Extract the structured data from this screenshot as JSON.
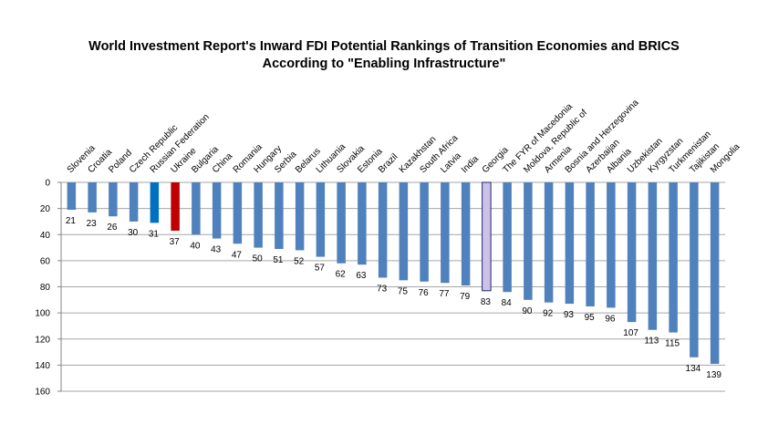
{
  "chart_data": {
    "type": "bar",
    "title_line1": "World Investment Report's Inward FDI Potential Rankings of Transition Economies and BRICS",
    "title_line2": "According to \"Enabling Infrastructure\"",
    "xlabel": "",
    "ylabel": "",
    "ylim": [
      0,
      160
    ],
    "y_inverted": true,
    "y_ticks": [
      0,
      20,
      40,
      60,
      80,
      100,
      120,
      140,
      160
    ],
    "grid": "horizontal",
    "legend": "none",
    "categories": [
      "Slovenia",
      "Croatia",
      "Poland",
      "Czech Republic",
      "Russian Federation",
      "Ukraine",
      "Bulgaria",
      "China",
      "Romania",
      "Hungary",
      "Serbia",
      "Belarus",
      "Lithuania",
      "Slovakia",
      "Estonia",
      "Brazil",
      "Kazakhstan",
      "South Africa",
      "Latvia",
      "India",
      "Georgia",
      "The FYR of Macedonia",
      "Moldova, Republic of",
      "Armenia",
      "Bosnia and Herzegovina",
      "Azerbaijan",
      "Albania",
      "Uzbekistan",
      "Kyrgyzstan",
      "Turkmenistan",
      "Tajikistan",
      "Mongolia"
    ],
    "values": [
      21,
      23,
      26,
      30,
      31,
      37,
      40,
      43,
      47,
      50,
      51,
      52,
      57,
      62,
      63,
      73,
      75,
      76,
      77,
      79,
      83,
      84,
      90,
      92,
      93,
      95,
      96,
      107,
      113,
      115,
      134,
      139
    ],
    "colors": {
      "default": "#4F81BD",
      "highlight_blue": "#0070C0",
      "highlight_red": "#C00000",
      "highlight_outline_fill": "#CCC1E8",
      "highlight_outline_stroke": "#1F2A6B",
      "grid": "#A6A6A6"
    },
    "highlights": {
      "Russian Federation": "highlight_blue",
      "Ukraine": "highlight_red",
      "Georgia": "highlight_outline"
    }
  }
}
